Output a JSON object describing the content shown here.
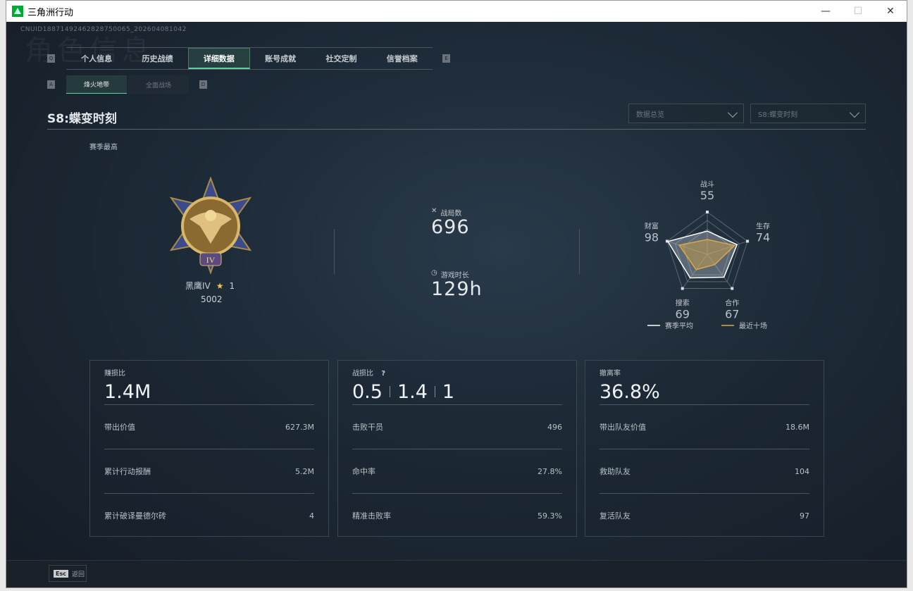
{
  "window": {
    "title": "三角洲行动",
    "minimize": "—",
    "maximize": "☐",
    "close": "✕"
  },
  "uid": "CNUID18871492462828750065_202604081042",
  "watermark": "角色信息",
  "tabs": [
    {
      "label": "个人信息"
    },
    {
      "label": "历史战绩"
    },
    {
      "label": "详细数据",
      "active": true
    },
    {
      "label": "账号成就"
    },
    {
      "label": "社交定制"
    },
    {
      "label": "信誉档案"
    }
  ],
  "tab_keys": {
    "left": "Q",
    "right": "E"
  },
  "subtabs": [
    {
      "label": "烽火地带",
      "active": true
    },
    {
      "label": "全面战场"
    }
  ],
  "subtab_keys": {
    "left": "A",
    "right": "D"
  },
  "season_title": "S8:蝶变时刻",
  "dropdowns": [
    {
      "value": "数据总览"
    },
    {
      "value": "S8:蝶变时刻"
    }
  ],
  "rank": {
    "label": "赛季最高",
    "name": "黑鹰IV",
    "stars": "1",
    "score": "5002",
    "badge_numeral": "IV"
  },
  "stats": {
    "matches_label": "战局数",
    "matches": "696",
    "time_label": "游戏时长",
    "time": "129h"
  },
  "chart_data": {
    "type": "radar",
    "axes": [
      "战斗",
      "生存",
      "合作",
      "搜索",
      "财富"
    ],
    "axis_values": [
      "55",
      "74",
      "67",
      "69",
      "98"
    ],
    "range": [
      0,
      100
    ],
    "series": [
      {
        "name": "赛季平均",
        "color": "#ffffff",
        "values": [
          55,
          74,
          67,
          69,
          98
        ]
      },
      {
        "name": "最近十场",
        "color": "#d9a84a",
        "values": [
          35,
          68,
          30,
          45,
          70
        ]
      }
    ],
    "legend_placement": "bottom"
  },
  "cards": [
    {
      "label": "赚损比",
      "value": "1.4M",
      "rows": [
        {
          "k": "带出价值",
          "v": "627.3M"
        },
        {
          "k": "累计行动报酬",
          "v": "5.2M"
        },
        {
          "k": "累计破译曼德尔砖",
          "v": "4"
        }
      ]
    },
    {
      "label": "战损比",
      "help": "?",
      "value_parts": [
        "0.5",
        "1.4",
        "1"
      ],
      "rows": [
        {
          "k": "击败干员",
          "v": "496"
        },
        {
          "k": "命中率",
          "v": "27.8%"
        },
        {
          "k": "精准击败率",
          "v": "59.3%"
        }
      ]
    },
    {
      "label": "撤离率",
      "value": "36.8%",
      "rows": [
        {
          "k": "带出队友价值",
          "v": "18.6M"
        },
        {
          "k": "救助队友",
          "v": "104"
        },
        {
          "k": "复活队友",
          "v": "97"
        }
      ]
    }
  ],
  "footer": {
    "key": "Esc",
    "label": "返回"
  },
  "colors": {
    "accent": "#5fd39d",
    "gold": "#d9a84a"
  }
}
